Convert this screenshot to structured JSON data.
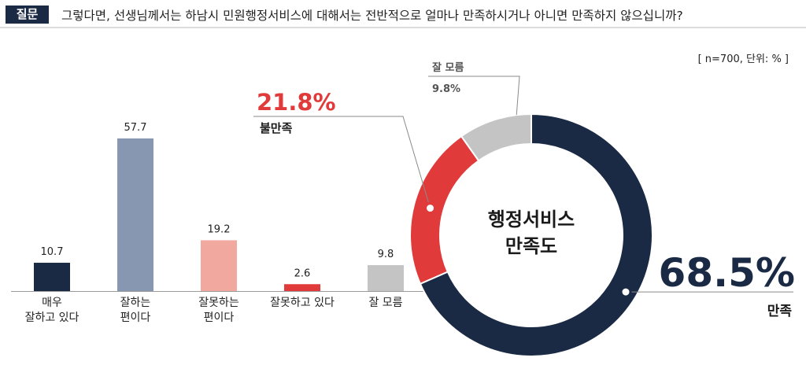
{
  "question": {
    "badge": "질문",
    "text": "그렇다면, 선생님께서는 하남시 민원행정서비스에 대해서는 전반적으로 얼마나 만족하시거나 아니면 만족하지 않으십니까?"
  },
  "sample_note": "[ n=700, 단위: % ]",
  "colors": {
    "navy": "#1b2a44",
    "slate": "#8797b2",
    "pink": "#f0a89f",
    "red": "#e03a3a",
    "gray": "#c4c4c4",
    "badge": "#1b2a44"
  },
  "chart_data": [
    {
      "type": "bar",
      "categories": [
        [
          "매우",
          "잘하고 있다"
        ],
        [
          "잘하는",
          "편이다"
        ],
        [
          "잘못하는",
          "편이다"
        ],
        [
          "잘못하고 있다"
        ],
        [
          "잘 모름"
        ]
      ],
      "values": [
        10.7,
        57.7,
        19.2,
        2.6,
        9.8
      ],
      "value_labels": [
        "10.7",
        "57.7",
        "19.2",
        "2.6",
        "9.8"
      ],
      "colors": [
        "#1b2a44",
        "#8797b2",
        "#f0a89f",
        "#e03a3a",
        "#c4c4c4"
      ],
      "unit": "%"
    },
    {
      "type": "pie",
      "style": "donut",
      "center_label": [
        "행정서비스",
        "만족도"
      ],
      "slices": [
        {
          "name": "만족",
          "value": 68.5,
          "label": "68.5%",
          "color": "#1b2a44"
        },
        {
          "name": "불만족",
          "value": 21.8,
          "label": "21.8%",
          "color": "#e03a3a"
        },
        {
          "name": "잘 모름",
          "value": 9.8,
          "label": "9.8%",
          "color": "#c4c4c4"
        }
      ]
    }
  ]
}
